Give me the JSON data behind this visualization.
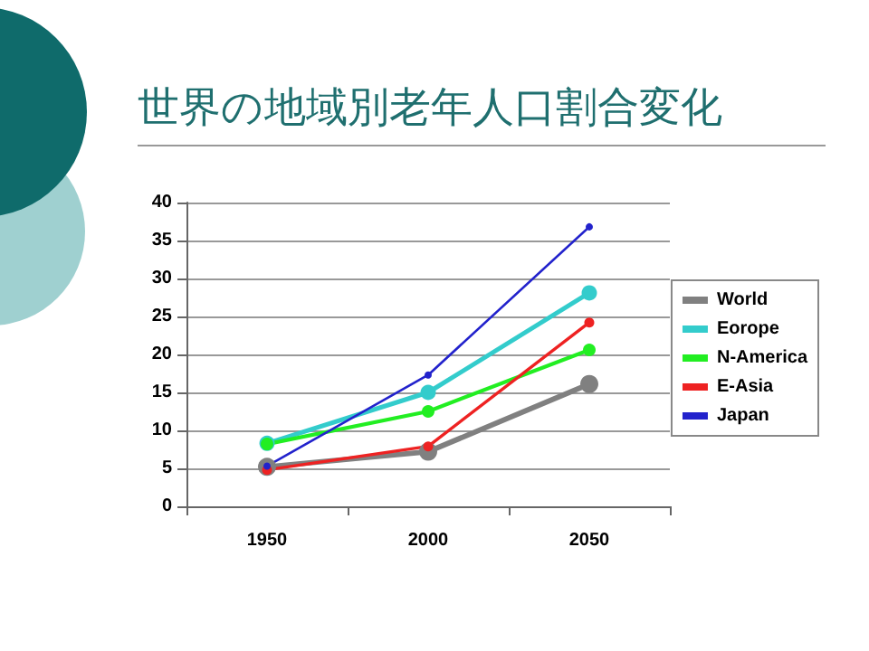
{
  "chart_data": {
    "type": "line",
    "title": "世界の地域別老年人口割合変化",
    "categories": [
      "1950",
      "2000",
      "2050"
    ],
    "series": [
      {
        "name": "World",
        "color": "#808080",
        "values": [
          5.2,
          7.2,
          16.1
        ]
      },
      {
        "name": "Eorope",
        "color": "#33cccc",
        "values": [
          8.3,
          15.0,
          28.1
        ]
      },
      {
        "name": "N-America",
        "color": "#22ee22",
        "values": [
          8.2,
          12.5,
          20.6
        ]
      },
      {
        "name": "E-Asia",
        "color": "#ee2222",
        "values": [
          4.8,
          7.9,
          24.2
        ]
      },
      {
        "name": "Japan",
        "color": "#2222cc",
        "values": [
          5.3,
          17.3,
          36.8
        ]
      }
    ],
    "ylim": [
      0,
      40
    ],
    "yticks": [
      0,
      5,
      10,
      15,
      20,
      25,
      30,
      35,
      40
    ],
    "grid": "y",
    "legend": "right",
    "marker": "circle",
    "line_style": "solid"
  }
}
